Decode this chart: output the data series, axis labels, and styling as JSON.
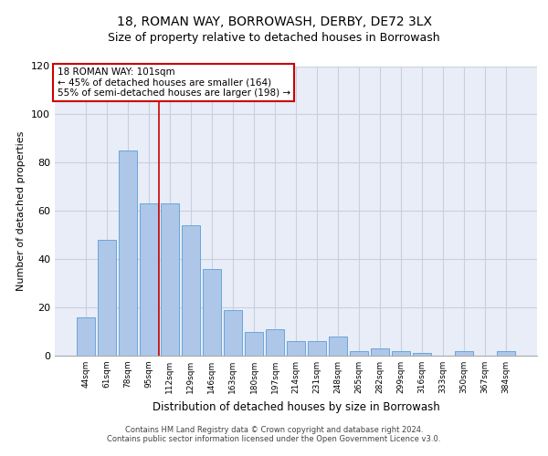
{
  "title1": "18, ROMAN WAY, BORROWASH, DERBY, DE72 3LX",
  "title2": "Size of property relative to detached houses in Borrowash",
  "xlabel": "Distribution of detached houses by size in Borrowash",
  "ylabel": "Number of detached properties",
  "bar_labels": [
    "44sqm",
    "61sqm",
    "78sqm",
    "95sqm",
    "112sqm",
    "129sqm",
    "146sqm",
    "163sqm",
    "180sqm",
    "197sqm",
    "214sqm",
    "231sqm",
    "248sqm",
    "265sqm",
    "282sqm",
    "299sqm",
    "316sqm",
    "333sqm",
    "350sqm",
    "367sqm",
    "384sqm"
  ],
  "bar_values": [
    16,
    48,
    85,
    63,
    63,
    54,
    36,
    19,
    10,
    11,
    6,
    6,
    8,
    2,
    3,
    2,
    1,
    0,
    2,
    0,
    2
  ],
  "bar_color": "#aec6e8",
  "bar_edgecolor": "#5a9fd4",
  "annotation_text": "18 ROMAN WAY: 101sqm\n← 45% of detached houses are smaller (164)\n55% of semi-detached houses are larger (198) →",
  "annotation_box_color": "#ffffff",
  "annotation_box_edgecolor": "#cc0000",
  "red_line_color": "#cc0000",
  "footer1": "Contains HM Land Registry data © Crown copyright and database right 2024.",
  "footer2": "Contains public sector information licensed under the Open Government Licence v3.0.",
  "ylim": [
    0,
    120
  ],
  "yticks": [
    0,
    20,
    40,
    60,
    80,
    100,
    120
  ],
  "grid_color": "#c8d0e0",
  "bg_color": "#e8edf8",
  "title_fontsize": 10,
  "subtitle_fontsize": 9
}
